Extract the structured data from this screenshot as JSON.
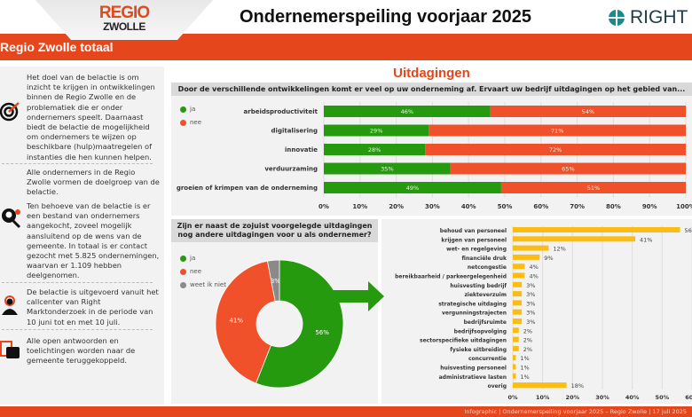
{
  "header": {
    "logo_line1": "REGIO",
    "logo_line2": "ZWOLLE",
    "title": "Ondernemerspeiling voorjaar 2025",
    "brand": "RIGHT"
  },
  "band": {
    "label": "Regio Zwolle totaal"
  },
  "sidebar": {
    "goal": "Het doel van de belactie is om inzicht te krijgen in ontwikkelingen binnen de Regio Zwolle en de problematiek die er onder ondernemers speelt. Daarnaast biedt de belactie de mogelijkheid om ondernemers te wijzen op beschikbare (hulp)maatregelen of instanties die hen kunnen helpen.",
    "target": "Alle ondernemers in de Regio Zwolle vormen de doelgroep van de belactie.",
    "sample": "Ten behoeve van de belactie is er een bestand van ondernemers aangekocht, zoveel mogelijk aansluitend op de wens van de gemeente. In totaal is er contact gezocht met 5.825 ondernemingen, waarvan er 1.109 hebben deelgenomen.",
    "method": "De belactie is uitgevoerd vanuit het callcenter van Right Marktonderzoek in de periode van 10 juni tot en met 10 juli.",
    "feedback": "Alle open antwoorden en toelichtingen worden naar de gemeente teruggekoppeld."
  },
  "section_title": "Uitdagingen",
  "colors": {
    "accent": "#e5461b",
    "ja": "#259a0e",
    "nee": "#f0502a",
    "weet": "#8a8a8a",
    "bar": "#fbbd13"
  },
  "chart_data": [
    {
      "type": "bar",
      "stacked": true,
      "orientation": "horizontal",
      "title": "Door de verschillende ontwikkelingen komt er veel op uw onderneming af. Ervaart uw bedrijf uitdagingen op het gebied van...",
      "categories": [
        "arbeidsproductiviteit",
        "digitalisering",
        "innovatie",
        "verduurzaming",
        "groeien of krimpen van de onderneming"
      ],
      "series": [
        {
          "name": "ja",
          "values": [
            46,
            29,
            28,
            35,
            49
          ]
        },
        {
          "name": "nee",
          "values": [
            54,
            71,
            72,
            65,
            51
          ]
        }
      ],
      "xlim": [
        0,
        100
      ],
      "xticks": [
        "0%",
        "10%",
        "20%",
        "30%",
        "40%",
        "50%",
        "60%",
        "70%",
        "80%",
        "90%",
        "100%"
      ],
      "legend": "top-left",
      "grid": true
    },
    {
      "type": "pie",
      "donut": true,
      "title": "Zijn er naast de zojuist voorgelegde uitdagingen nog andere uitdagingen voor u als ondernemer?",
      "labels": [
        "ja",
        "nee",
        "weet ik niet"
      ],
      "values": [
        56,
        41,
        3
      ],
      "value_labels": [
        "56%",
        "41%",
        "3%"
      ],
      "legend": "top-left"
    },
    {
      "type": "bar",
      "orientation": "horizontal",
      "categories": [
        "behoud van personeel",
        "krijgen van personeel",
        "wet- en regelgeving",
        "financiële druk",
        "netcongestie",
        "bereikbaarheid / parkeergelegenheid",
        "huisvesting bedrijf",
        "ziekteverzuim",
        "strategische uitdaging",
        "vergunningstrajecten",
        "bedrijfsruimte",
        "bedrijfsopvolging",
        "sectorspecifieke uitdagingen",
        "fysieke uitbreiding",
        "concurrentie",
        "huisvesting personeel",
        "administratieve lasten",
        "overig"
      ],
      "values": [
        56,
        41,
        12,
        9,
        4,
        4,
        3,
        3,
        3,
        3,
        3,
        2,
        2,
        2,
        1,
        1,
        1,
        18
      ],
      "xlim": [
        0,
        60
      ],
      "xticks": [
        "0%",
        "10%",
        "20%",
        "30%",
        "40%",
        "50%",
        "60%"
      ],
      "grid": true
    }
  ],
  "footer": "Infographic | Ondernemerspeiling voorjaar 2025 – Regio Zwolle | 17 juli 2025"
}
